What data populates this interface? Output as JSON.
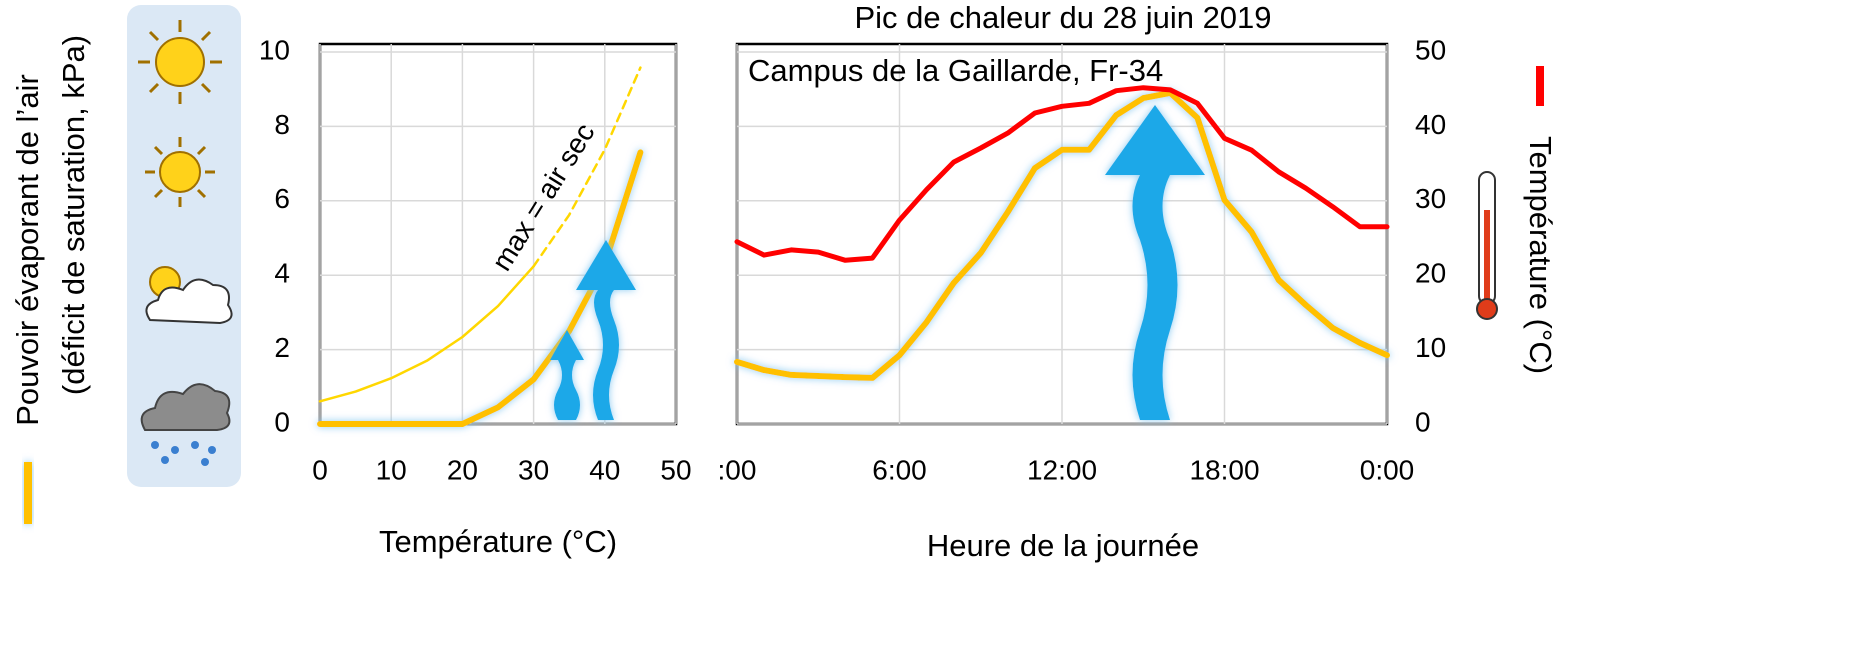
{
  "chart_data": [
    {
      "type": "line",
      "xlabel": "Température (°C)",
      "ylabel": [
        "Pouvoir évaporant de l’air",
        "(déficit de saturation, kPa)"
      ],
      "annotation": "max = air sec",
      "xlim": [
        0,
        50
      ],
      "xticks": [
        0,
        10,
        20,
        30,
        40,
        50
      ],
      "ylim": [
        0,
        10
      ],
      "yticks": [
        0,
        2,
        4,
        6,
        8,
        10
      ],
      "grid": true,
      "series": [
        {
          "color": "#ffc000",
          "style": "solid",
          "width": 6,
          "glow": true,
          "x": [
            0,
            20,
            25,
            30,
            35,
            40,
            45
          ],
          "values": [
            0,
            0,
            0.45,
            1.2,
            2.5,
            4.3,
            7.3
          ]
        },
        {
          "color": "#ffd700",
          "style": "solid",
          "width": 2.5,
          "glow": false,
          "x": [
            0,
            5,
            10,
            15,
            20,
            25,
            30
          ],
          "values": [
            0.61,
            0.87,
            1.23,
            1.7,
            2.34,
            3.17,
            4.24
          ]
        },
        {
          "color": "#ffd700",
          "style": "dashed",
          "width": 2.5,
          "glow": false,
          "x": [
            30,
            35,
            40,
            45
          ],
          "values": [
            4.24,
            5.62,
            7.38,
            9.58
          ]
        }
      ]
    },
    {
      "type": "line",
      "title": "Pic de chaleur du 28 juin 2019",
      "subtitle": "Campus de la Gaillarde, Fr-34",
      "xlabel": "Heure de la journée",
      "y2label": "Température (°C)",
      "xlim": [
        0,
        24
      ],
      "xticks": [
        {
          "value": 0,
          "label": ":00"
        },
        {
          "value": 6,
          "label": "6:00"
        },
        {
          "value": 12,
          "label": "12:00"
        },
        {
          "value": 18,
          "label": "18:00"
        },
        {
          "value": 24,
          "label": "0:00"
        }
      ],
      "ylim": [
        0,
        10
      ],
      "y2lim": [
        0,
        50
      ],
      "y2ticks": [
        0,
        10,
        20,
        30,
        40,
        50
      ],
      "grid": true,
      "x": [
        0,
        1,
        2,
        3,
        4,
        5,
        6,
        7,
        8,
        9,
        10,
        11,
        12,
        13,
        14,
        15,
        16,
        17,
        18,
        19,
        20,
        21,
        22,
        23,
        24
      ],
      "series": [
        {
          "color": "#ffc000",
          "style": "solid",
          "width": 6,
          "glow": true,
          "values": [
            1.67,
            1.45,
            1.32,
            1.29,
            1.26,
            1.24,
            1.85,
            2.74,
            3.79,
            4.6,
            5.7,
            6.88,
            7.37,
            7.37,
            8.3,
            8.76,
            8.9,
            8.23,
            6.02,
            5.16,
            3.87,
            3.2,
            2.58,
            2.18,
            1.85
          ]
        },
        {
          "color": "#ff0000",
          "style": "solid",
          "width": 5,
          "glow": false,
          "axis": "y2",
          "values": [
            24.5,
            22.7,
            23.4,
            23.1,
            22.0,
            22.3,
            27.4,
            31.5,
            35.2,
            37.1,
            39.1,
            41.8,
            42.7,
            43.1,
            44.8,
            45.2,
            44.9,
            43.1,
            38.4,
            36.8,
            33.9,
            31.7,
            29.2,
            26.5,
            26.5
          ]
        }
      ]
    }
  ]
}
